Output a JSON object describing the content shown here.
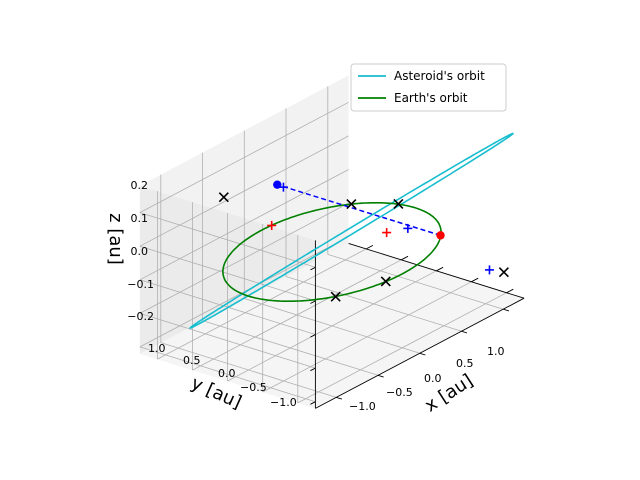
{
  "chart_data": {
    "type": "line",
    "projection": "3d",
    "axes": {
      "x": {
        "label": "x [au]",
        "ticks": [
          "−1.0",
          "−0.5",
          "0.0",
          "0.5",
          "1.0"
        ],
        "lim": [
          -1.25,
          1.25
        ]
      },
      "y": {
        "label": "y [au]",
        "ticks": [
          "−1.0",
          "−0.5",
          "0.0",
          "0.5",
          "1.0"
        ],
        "lim": [
          -1.25,
          1.25
        ]
      },
      "z": {
        "label": "z [au]",
        "ticks": [
          "−0.2",
          "−0.1",
          "0.0",
          "0.1",
          "0.2"
        ],
        "lim": [
          -0.22,
          0.28
        ]
      }
    },
    "grid": true,
    "legend": {
      "placement": "upper-right",
      "entries": [
        "Asteroid's orbit",
        "Earth's orbit"
      ]
    },
    "series": [
      {
        "name": "Asteroid's orbit",
        "color": "#17becf",
        "kind": "ellipse",
        "center": [
          0.15,
          -0.1,
          0.05
        ],
        "semi_axis_u": [
          1.05,
          -1.05,
          0.22
        ],
        "semi_axis_v": [
          0.05,
          0.06,
          0.0
        ]
      },
      {
        "name": "Earth's orbit",
        "color": "#008000",
        "kind": "circle",
        "center": [
          0,
          0,
          0
        ],
        "radius": 1.0
      }
    ],
    "points": [
      {
        "label": "earth-position",
        "marker": "dot",
        "color": "#ff0000",
        "xyz": [
          0.72,
          -0.69,
          0.0
        ]
      },
      {
        "label": "asteroid-position",
        "marker": "dot",
        "color": "#0000ff",
        "xyz": [
          -0.05,
          0.72,
          0.16
        ]
      }
    ],
    "segments": [
      {
        "color": "#0000ff",
        "style": "dashed",
        "from": [
          0.72,
          -0.69,
          0.0
        ],
        "to": [
          -0.05,
          0.72,
          0.16
        ]
      }
    ],
    "markers": [
      {
        "symbol": "x",
        "color": "#000000",
        "xyz": [
          -0.85,
          0.53,
          0.24
        ]
      },
      {
        "symbol": "x",
        "color": "#000000",
        "xyz": [
          0.77,
          0.64,
          0.0
        ]
      },
      {
        "symbol": "x",
        "color": "#000000",
        "xyz": [
          0.98,
          0.22,
          0.0
        ]
      },
      {
        "symbol": "x",
        "color": "#000000",
        "xyz": [
          -0.62,
          -0.79,
          0.0
        ]
      },
      {
        "symbol": "x",
        "color": "#000000",
        "xyz": [
          -0.18,
          -0.98,
          0.0
        ]
      },
      {
        "symbol": "x",
        "color": "#000000",
        "xyz": [
          1.1,
          -1.14,
          -0.13
        ]
      },
      {
        "symbol": "plus",
        "color": "#ff0000",
        "xyz": [
          0.52,
          -0.16,
          0.0
        ]
      },
      {
        "symbol": "plus",
        "color": "#ff0000",
        "xyz": [
          0.11,
          0.99,
          0.0
        ]
      },
      {
        "symbol": "plus",
        "color": "#0000ff",
        "xyz": [
          -0.01,
          0.68,
          0.15
        ]
      },
      {
        "symbol": "plus",
        "color": "#0000ff",
        "xyz": [
          0.53,
          -0.45,
          0.03
        ]
      },
      {
        "symbol": "plus",
        "color": "#0000ff",
        "xyz": [
          1.02,
          -1.03,
          -0.12
        ]
      }
    ]
  }
}
